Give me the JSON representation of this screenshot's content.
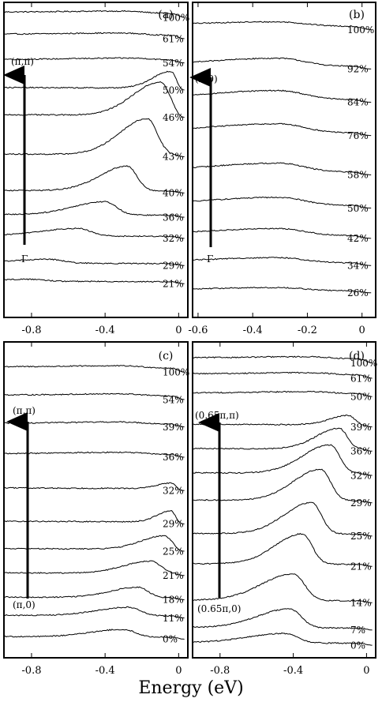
{
  "figure": {
    "xlabel": "Energy (eV)"
  },
  "chart_data": [
    {
      "type": "line",
      "panel": "(a)",
      "xlabel": "Energy (eV)",
      "ylabel": "",
      "xlim": [
        -0.95,
        0.05
      ],
      "xticks": [
        -0.8,
        -0.4,
        0
      ],
      "xtick_labels": [
        "-0.8",
        "-0.4",
        "0"
      ],
      "k_labels": [
        "(π,π)",
        "Γ"
      ],
      "grid": false,
      "legend": "none",
      "curve_labels": [
        "100%",
        "61%",
        "54%",
        "50%",
        "46%",
        "43%",
        "40%",
        "36%",
        "32%",
        "29%",
        "21%"
      ],
      "series": [
        {
          "name": "100%",
          "peak_energy": -0.3,
          "peak_height": 0.2,
          "width": 0.6,
          "background": 0.6,
          "offset": 0.97
        },
        {
          "name": "61%",
          "peak_energy": -0.3,
          "peak_height": 0.2,
          "width": 0.6,
          "background": 0.5,
          "offset": 0.9
        },
        {
          "name": "54%",
          "peak_energy": -0.25,
          "peak_height": 0.2,
          "width": 0.6,
          "background": 0.4,
          "offset": 0.82
        },
        {
          "name": "50%",
          "peak_energy": -0.04,
          "peak_height": 1.8,
          "width": 0.2,
          "background": 0.3,
          "offset": 0.73
        },
        {
          "name": "46%",
          "peak_energy": -0.1,
          "peak_height": 3.5,
          "width": 0.3,
          "background": 0.3,
          "offset": 0.64
        },
        {
          "name": "43%",
          "peak_energy": -0.17,
          "peak_height": 3.8,
          "width": 0.3,
          "background": 0.3,
          "offset": 0.51
        },
        {
          "name": "40%",
          "peak_energy": -0.28,
          "peak_height": 2.6,
          "width": 0.3,
          "background": 0.3,
          "offset": 0.39
        },
        {
          "name": "36%",
          "peak_energy": -0.4,
          "peak_height": 1.4,
          "width": 0.35,
          "background": 0.3,
          "offset": 0.31
        },
        {
          "name": "32%",
          "peak_energy": -0.55,
          "peak_height": 0.8,
          "width": 0.4,
          "background": 0.3,
          "offset": 0.24
        },
        {
          "name": "29%",
          "peak_energy": -0.7,
          "peak_height": 0.4,
          "width": 0.4,
          "background": 0.3,
          "offset": 0.15
        },
        {
          "name": "21%",
          "peak_energy": -0.8,
          "peak_height": 0.2,
          "width": 0.4,
          "background": 0.3,
          "offset": 0.09
        }
      ]
    },
    {
      "type": "line",
      "panel": "(b)",
      "xlabel": "Energy (eV)",
      "ylabel": "",
      "xlim": [
        -0.62,
        0.05
      ],
      "xticks": [
        -0.6,
        -0.4,
        -0.2,
        0
      ],
      "xtick_labels": [
        "-0.6",
        "-0.4",
        "-0.2",
        "0"
      ],
      "k_labels": [
        "(π,0)",
        "Γ"
      ],
      "grid": false,
      "legend": "none",
      "curve_labels": [
        "100%",
        "92%",
        "84%",
        "76%",
        "58%",
        "50%",
        "42%",
        "34%",
        "26%"
      ],
      "series": [
        {
          "name": "100%",
          "peak_energy": -0.3,
          "peak_height": 0.4,
          "width": 0.5,
          "background": 0.5,
          "offset": 0.93
        },
        {
          "name": "92%",
          "peak_energy": -0.3,
          "peak_height": 0.8,
          "width": 0.5,
          "background": 0.4,
          "offset": 0.8
        },
        {
          "name": "84%",
          "peak_energy": -0.3,
          "peak_height": 0.9,
          "width": 0.5,
          "background": 0.4,
          "offset": 0.69
        },
        {
          "name": "76%",
          "peak_energy": -0.3,
          "peak_height": 0.9,
          "width": 0.5,
          "background": 0.4,
          "offset": 0.58
        },
        {
          "name": "58%",
          "peak_energy": -0.3,
          "peak_height": 0.9,
          "width": 0.5,
          "background": 0.4,
          "offset": 0.45
        },
        {
          "name": "50%",
          "peak_energy": -0.3,
          "peak_height": 0.8,
          "width": 0.5,
          "background": 0.4,
          "offset": 0.34
        },
        {
          "name": "42%",
          "peak_energy": -0.3,
          "peak_height": 0.7,
          "width": 0.5,
          "background": 0.4,
          "offset": 0.24
        },
        {
          "name": "34%",
          "peak_energy": -0.3,
          "peak_height": 0.5,
          "width": 0.5,
          "background": 0.4,
          "offset": 0.15
        },
        {
          "name": "26%",
          "peak_energy": -0.3,
          "peak_height": 0.3,
          "width": 0.5,
          "background": 0.3,
          "offset": 0.06
        }
      ]
    },
    {
      "type": "line",
      "panel": "(c)",
      "xlabel": "Energy (eV)",
      "ylabel": "",
      "xlim": [
        -0.95,
        0.05
      ],
      "xticks": [
        -0.8,
        -0.4,
        0
      ],
      "xtick_labels": [
        "-0.8",
        "-0.4",
        "0"
      ],
      "k_labels": [
        "(π,π)",
        "(π,0)"
      ],
      "grid": false,
      "legend": "none",
      "curve_labels": [
        "100%",
        "54%",
        "39%",
        "36%",
        "32%",
        "29%",
        "25%",
        "21%",
        "18%",
        "11%",
        "0%"
      ],
      "series": [
        {
          "name": "100%",
          "peak_energy": -0.3,
          "peak_height": 0.2,
          "width": 0.6,
          "background": 0.6,
          "offset": 0.92
        },
        {
          "name": "54%",
          "peak_energy": -0.3,
          "peak_height": 0.2,
          "width": 0.6,
          "background": 0.5,
          "offset": 0.83
        },
        {
          "name": "39%",
          "peak_energy": -0.3,
          "peak_height": 0.2,
          "width": 0.6,
          "background": 0.4,
          "offset": 0.74
        },
        {
          "name": "36%",
          "peak_energy": -0.3,
          "peak_height": 0.2,
          "width": 0.6,
          "background": 0.4,
          "offset": 0.64
        },
        {
          "name": "32%",
          "peak_energy": -0.04,
          "peak_height": 0.6,
          "width": 0.15,
          "background": 0.3,
          "offset": 0.53
        },
        {
          "name": "29%",
          "peak_energy": -0.04,
          "peak_height": 1.2,
          "width": 0.15,
          "background": 0.3,
          "offset": 0.42
        },
        {
          "name": "25%",
          "peak_energy": -0.08,
          "peak_height": 1.4,
          "width": 0.25,
          "background": 0.3,
          "offset": 0.33
        },
        {
          "name": "21%",
          "peak_energy": -0.15,
          "peak_height": 1.3,
          "width": 0.3,
          "background": 0.3,
          "offset": 0.25
        },
        {
          "name": "18%",
          "peak_energy": -0.22,
          "peak_height": 1.1,
          "width": 0.3,
          "background": 0.3,
          "offset": 0.17
        },
        {
          "name": "11%",
          "peak_energy": -0.27,
          "peak_height": 0.9,
          "width": 0.35,
          "background": 0.3,
          "offset": 0.11
        },
        {
          "name": "0%",
          "peak_energy": -0.3,
          "peak_height": 0.8,
          "width": 0.35,
          "background": 0.3,
          "offset": 0.04
        }
      ]
    },
    {
      "type": "line",
      "panel": "(d)",
      "xlabel": "Energy (eV)",
      "ylabel": "",
      "xlim": [
        -0.95,
        0.05
      ],
      "xticks": [
        -0.8,
        -0.4,
        0
      ],
      "xtick_labels": [
        "-0.8",
        "-0.4",
        "0"
      ],
      "k_labels": [
        "(0.65π,π)",
        "(0.65π,0)"
      ],
      "grid": false,
      "legend": "none",
      "curve_labels": [
        "100%",
        "61%",
        "50%",
        "39%",
        "36%",
        "32%",
        "29%",
        "25%",
        "21%",
        "14%",
        "7%",
        "0%"
      ],
      "series": [
        {
          "name": "100%",
          "peak_energy": -0.3,
          "peak_height": 0.2,
          "width": 0.6,
          "background": 0.6,
          "offset": 0.95
        },
        {
          "name": "61%",
          "peak_energy": -0.3,
          "peak_height": 0.2,
          "width": 0.6,
          "background": 0.5,
          "offset": 0.9
        },
        {
          "name": "50%",
          "peak_energy": -0.3,
          "peak_height": 0.2,
          "width": 0.6,
          "background": 0.4,
          "offset": 0.84
        },
        {
          "name": "39%",
          "peak_energy": -0.1,
          "peak_height": 1.0,
          "width": 0.2,
          "background": 0.3,
          "offset": 0.74
        },
        {
          "name": "36%",
          "peak_energy": -0.15,
          "peak_height": 2.2,
          "width": 0.25,
          "background": 0.3,
          "offset": 0.66
        },
        {
          "name": "32%",
          "peak_energy": -0.2,
          "peak_height": 3.0,
          "width": 0.3,
          "background": 0.3,
          "offset": 0.58
        },
        {
          "name": "29%",
          "peak_energy": -0.25,
          "peak_height": 3.3,
          "width": 0.3,
          "background": 0.3,
          "offset": 0.49
        },
        {
          "name": "25%",
          "peak_energy": -0.3,
          "peak_height": 3.3,
          "width": 0.3,
          "background": 0.3,
          "offset": 0.38
        },
        {
          "name": "21%",
          "peak_energy": -0.35,
          "peak_height": 3.2,
          "width": 0.3,
          "background": 0.3,
          "offset": 0.28
        },
        {
          "name": "14%",
          "peak_energy": -0.4,
          "peak_height": 2.8,
          "width": 0.35,
          "background": 0.3,
          "offset": 0.16
        },
        {
          "name": "7%",
          "peak_energy": -0.42,
          "peak_height": 2.0,
          "width": 0.35,
          "background": 0.3,
          "offset": 0.07
        },
        {
          "name": "0%",
          "peak_energy": -0.45,
          "peak_height": 1.0,
          "width": 0.4,
          "background": 0.3,
          "offset": 0.02
        }
      ]
    }
  ]
}
